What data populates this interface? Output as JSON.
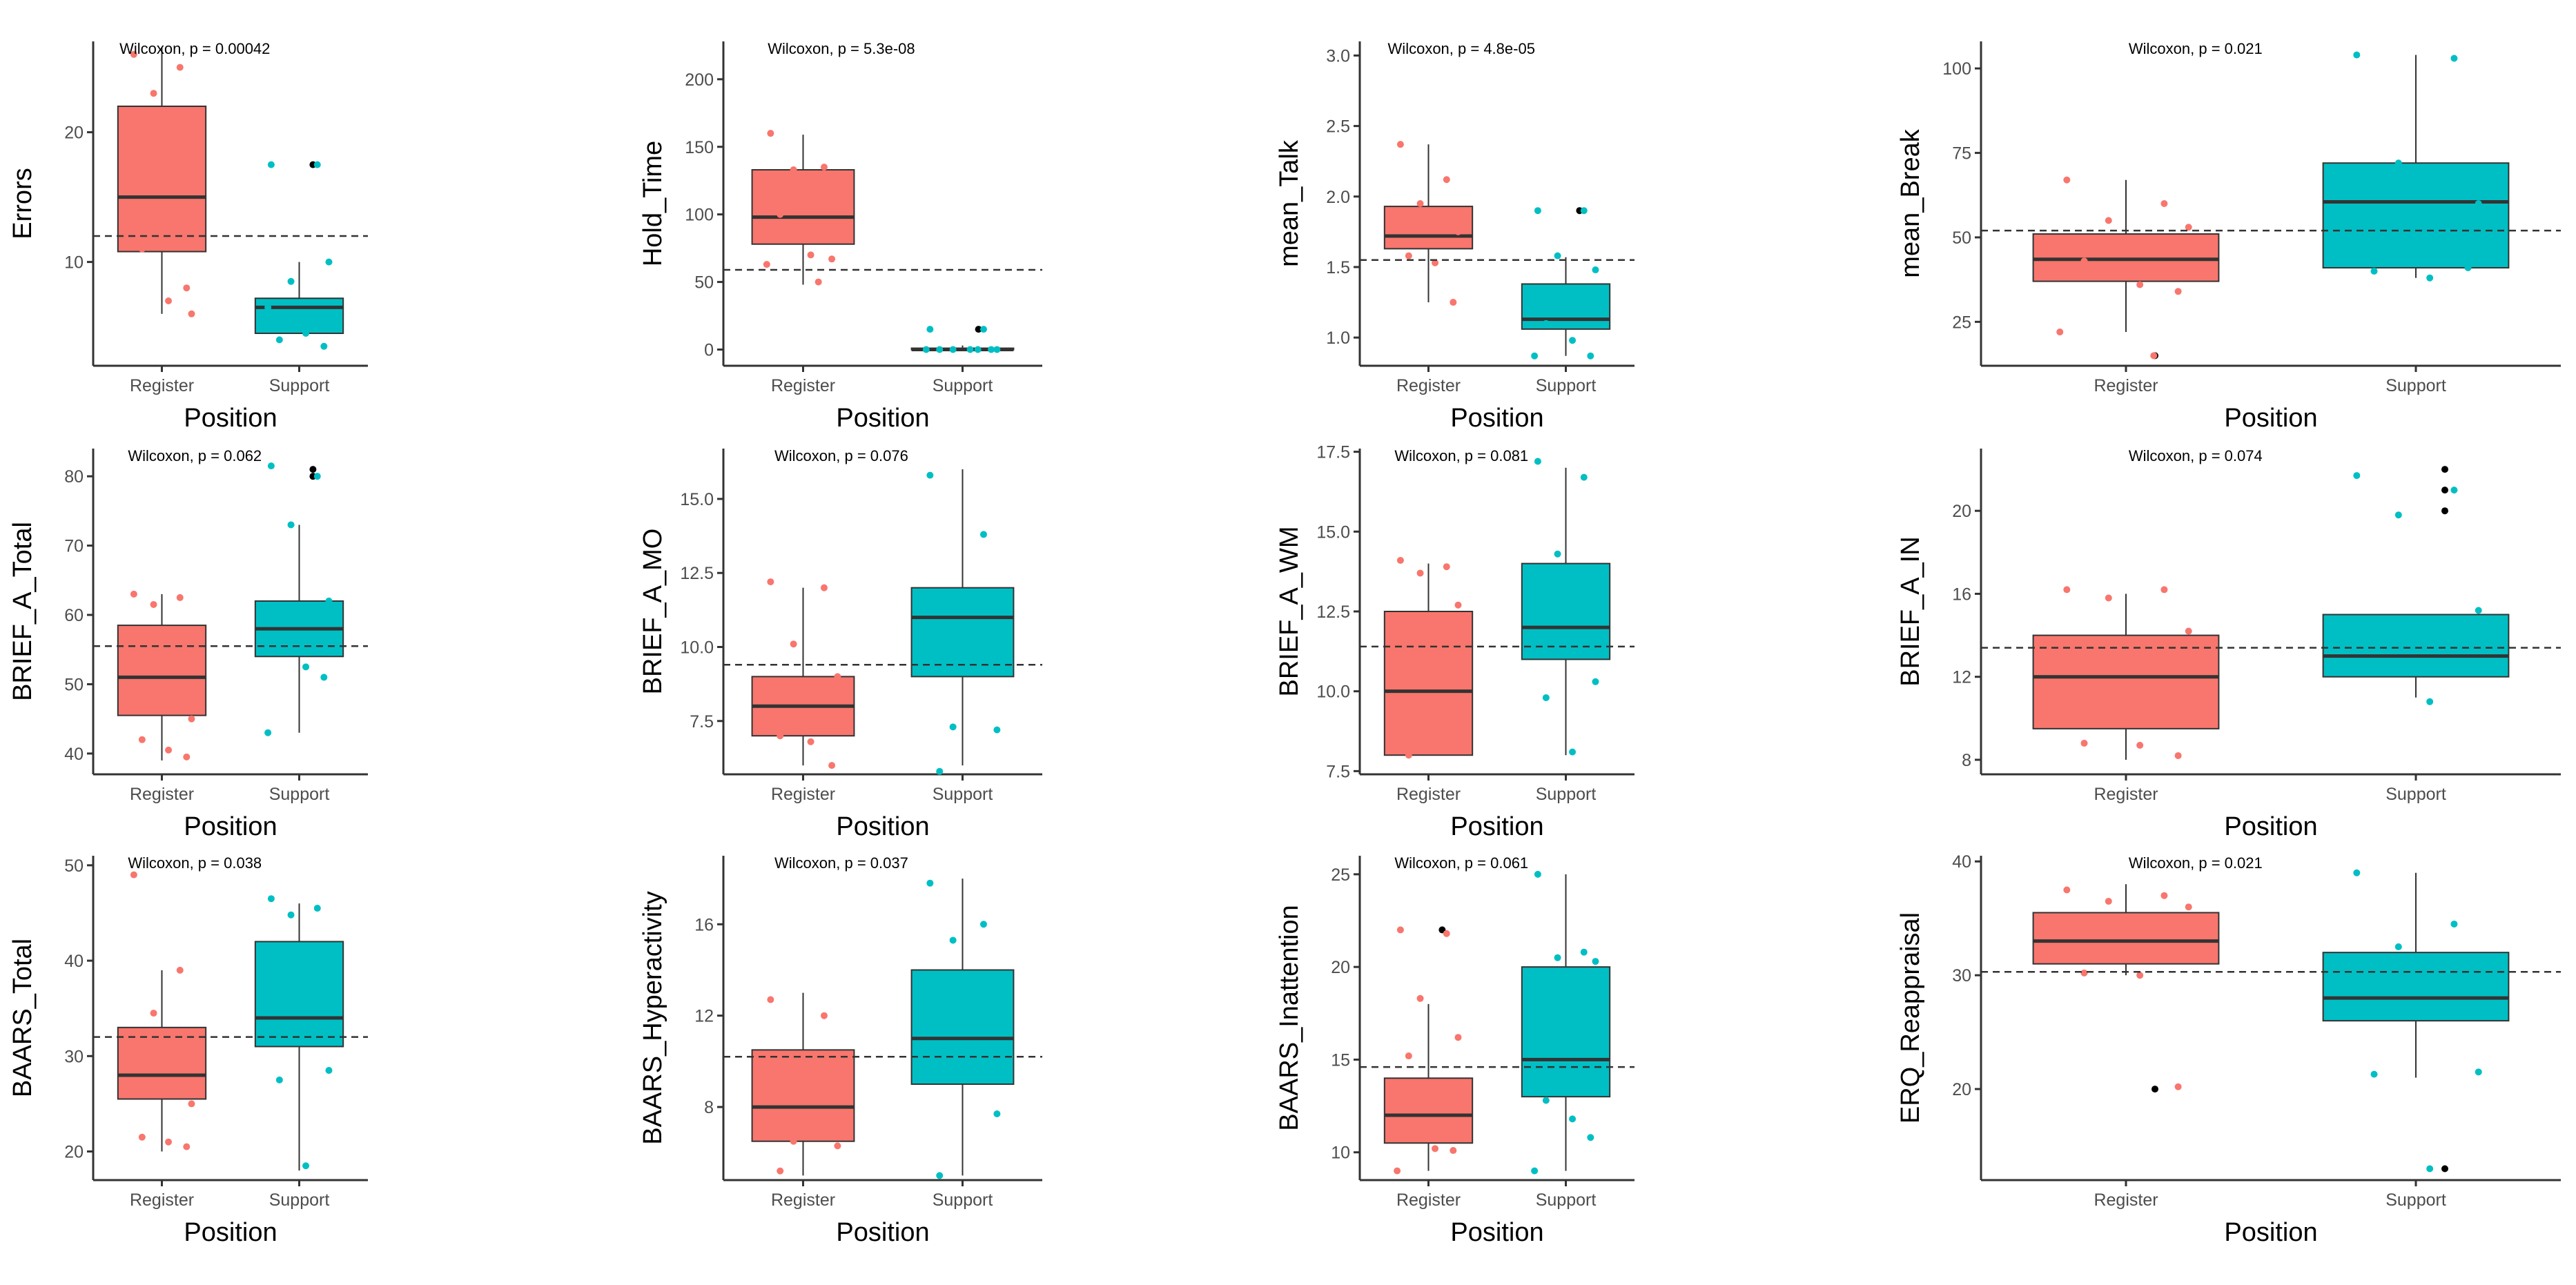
{
  "colors": {
    "register": "#f8766d",
    "support": "#00bfc4",
    "median": "#333333",
    "axis": "#333333",
    "outlier": "#000000"
  },
  "chart_data": [
    {
      "type": "boxplot",
      "panel": "errors",
      "ylabel": "Errors",
      "xlabel": "Position",
      "test": "Wilcoxon, p = 0.00042",
      "categories": [
        "Register",
        "Support"
      ],
      "ylim": [
        2,
        27
      ],
      "yticks": [
        10,
        20
      ],
      "yticklabels": [
        "10",
        "20"
      ],
      "mean_line": 12,
      "boxes": [
        {
          "group": "Register",
          "whisker_low": 6,
          "q1": 10.8,
          "median": 15,
          "q3": 22,
          "whisker_high": 26.5,
          "outliers": []
        },
        {
          "group": "Support",
          "whisker_low": 4.5,
          "q1": 4.5,
          "median": 6.5,
          "q3": 7.2,
          "whisker_high": 10,
          "outliers": [
            17.5
          ]
        }
      ],
      "points": [
        {
          "group": "Register",
          "values": [
            26,
            25,
            23,
            6,
            11,
            7,
            8
          ]
        },
        {
          "group": "Support",
          "values": [
            17.5,
            17.5,
            8.5,
            10,
            4,
            4.5,
            3.5,
            6.5
          ]
        }
      ]
    },
    {
      "type": "boxplot",
      "panel": "hold",
      "ylabel": "Hold_Time",
      "xlabel": "Position",
      "test": "Wilcoxon, p = 5.3e-08",
      "categories": [
        "Register",
        "Support"
      ],
      "ylim": [
        -12,
        228
      ],
      "yticks": [
        0,
        50,
        100,
        150,
        200
      ],
      "yticklabels": [
        "0",
        "50",
        "100",
        "150",
        "200"
      ],
      "mean_line": 59,
      "boxes": [
        {
          "group": "Register",
          "whisker_low": 48,
          "q1": 78,
          "median": 98,
          "q3": 133,
          "whisker_high": 159,
          "outliers": []
        },
        {
          "group": "Support",
          "whisker_low": 0,
          "q1": 0,
          "median": 0,
          "q3": 1,
          "whisker_high": 3,
          "outliers": [
            15
          ]
        }
      ],
      "points": [
        {
          "group": "Register",
          "values": [
            160,
            135,
            133,
            130,
            100,
            70,
            67,
            63,
            50
          ]
        },
        {
          "group": "Support",
          "values": [
            15,
            15,
            0,
            0,
            0,
            0,
            0,
            0,
            0
          ]
        }
      ]
    },
    {
      "type": "boxplot",
      "panel": "talk",
      "ylabel": "mean_Talk",
      "xlabel": "Position",
      "test": "Wilcoxon, p = 4.8e-05",
      "categories": [
        "Register",
        "Support"
      ],
      "ylim": [
        0.8,
        3.1
      ],
      "yticks": [
        1.0,
        1.5,
        2.0,
        2.5,
        3.0
      ],
      "yticklabels": [
        "1.0",
        "1.5",
        "2.0",
        "2.5",
        "3.0"
      ],
      "mean_line": 1.55,
      "boxes": [
        {
          "group": "Register",
          "whisker_low": 1.25,
          "q1": 1.63,
          "median": 1.72,
          "q3": 1.93,
          "whisker_high": 2.37,
          "outliers": []
        },
        {
          "group": "Support",
          "whisker_low": 0.87,
          "q1": 1.06,
          "median": 1.13,
          "q3": 1.38,
          "whisker_high": 1.57,
          "outliers": [
            1.9
          ]
        }
      ],
      "points": [
        {
          "group": "Register",
          "values": [
            2.37,
            2.12,
            1.95,
            1.75,
            1.58,
            1.53,
            1.25
          ]
        },
        {
          "group": "Support",
          "values": [
            1.9,
            1.9,
            1.58,
            1.48,
            1.1,
            0.98,
            0.87,
            0.87
          ]
        }
      ]
    },
    {
      "type": "boxplot",
      "panel": "break",
      "ylabel": "mean_Break",
      "xlabel": "Position",
      "test": "Wilcoxon, p = 0.021",
      "categories": [
        "Register",
        "Support"
      ],
      "ylim": [
        12,
        108
      ],
      "yticks": [
        25,
        50,
        75,
        100
      ],
      "yticklabels": [
        "25",
        "50",
        "75",
        "100"
      ],
      "mean_line": 52,
      "boxes": [
        {
          "group": "Register",
          "whisker_low": 22,
          "q1": 37,
          "median": 43.5,
          "q3": 51,
          "whisker_high": 67,
          "outliers": [
            15
          ]
        },
        {
          "group": "Support",
          "whisker_low": 38,
          "q1": 41,
          "median": 60.5,
          "q3": 72,
          "whisker_high": 104,
          "outliers": []
        }
      ],
      "points": [
        {
          "group": "Register",
          "values": [
            67,
            60,
            55,
            53,
            43,
            36,
            34,
            22,
            15
          ]
        },
        {
          "group": "Support",
          "values": [
            104,
            103,
            72,
            60,
            40,
            38,
            41
          ]
        }
      ]
    },
    {
      "type": "boxplot",
      "panel": "brief_total",
      "ylabel": "BRIEF_A_Total",
      "xlabel": "Position",
      "test": "Wilcoxon, p = 0.062",
      "categories": [
        "Register",
        "Support"
      ],
      "ylim": [
        37,
        84
      ],
      "yticks": [
        40,
        50,
        60,
        70,
        80
      ],
      "yticklabels": [
        "40",
        "50",
        "60",
        "70",
        "80"
      ],
      "mean_line": 55.5,
      "boxes": [
        {
          "group": "Register",
          "whisker_low": 39,
          "q1": 45.5,
          "median": 51,
          "q3": 58.5,
          "whisker_high": 63,
          "outliers": []
        },
        {
          "group": "Support",
          "whisker_low": 43,
          "q1": 54,
          "median": 58,
          "q3": 62,
          "whisker_high": 73,
          "outliers": [
            80,
            81
          ]
        }
      ],
      "points": [
        {
          "group": "Register",
          "values": [
            63,
            62.5,
            61.5,
            45,
            42,
            40.5,
            39.5
          ]
        },
        {
          "group": "Support",
          "values": [
            81.5,
            80,
            73,
            62,
            57,
            52.5,
            51,
            43
          ]
        }
      ]
    },
    {
      "type": "boxplot",
      "panel": "brief_mo",
      "ylabel": "BRIEF_A_MO",
      "xlabel": "Position",
      "test": "Wilcoxon, p = 0.076",
      "categories": [
        "Register",
        "Support"
      ],
      "ylim": [
        5.7,
        16.7
      ],
      "yticks": [
        7.5,
        10,
        12.5,
        15
      ],
      "yticklabels": [
        "7.5",
        "10.0",
        "12.5",
        "15.0"
      ],
      "mean_line": 9.4,
      "boxes": [
        {
          "group": "Register",
          "whisker_low": 6,
          "q1": 7,
          "median": 8,
          "q3": 9,
          "whisker_high": 12,
          "outliers": []
        },
        {
          "group": "Support",
          "whisker_low": 6,
          "q1": 9,
          "median": 11,
          "q3": 12,
          "whisker_high": 16,
          "outliers": []
        }
      ],
      "points": [
        {
          "group": "Register",
          "values": [
            12.2,
            12,
            10.1,
            9,
            7,
            6.8,
            6
          ]
        },
        {
          "group": "Support",
          "values": [
            15.8,
            13.8,
            7.3,
            7.2,
            5.8
          ]
        }
      ]
    },
    {
      "type": "boxplot",
      "panel": "brief_wm",
      "ylabel": "BRIEF_A_WM",
      "xlabel": "Position",
      "test": "Wilcoxon, p = 0.081",
      "categories": [
        "Register",
        "Support"
      ],
      "ylim": [
        7.4,
        17.6
      ],
      "yticks": [
        7.5,
        10,
        12.5,
        15,
        17.5
      ],
      "yticklabels": [
        "7.5",
        "10.0",
        "12.5",
        "15.0",
        "17.5"
      ],
      "mean_line": 11.4,
      "boxes": [
        {
          "group": "Register",
          "whisker_low": 8,
          "q1": 8,
          "median": 10,
          "q3": 12.5,
          "whisker_high": 14,
          "outliers": []
        },
        {
          "group": "Support",
          "whisker_low": 8,
          "q1": 11,
          "median": 12,
          "q3": 14,
          "whisker_high": 17,
          "outliers": []
        }
      ],
      "points": [
        {
          "group": "Register",
          "values": [
            14.1,
            13.9,
            13.7,
            12.7,
            8
          ]
        },
        {
          "group": "Support",
          "values": [
            17.2,
            16.7,
            14.3,
            10.3,
            9.8,
            8.1
          ]
        }
      ]
    },
    {
      "type": "boxplot",
      "panel": "brief_in",
      "ylabel": "BRIEF_A_IN",
      "xlabel": "Position",
      "test": "Wilcoxon, p = 0.074",
      "categories": [
        "Register",
        "Support"
      ],
      "ylim": [
        7.3,
        23
      ],
      "yticks": [
        8,
        12,
        16,
        20
      ],
      "yticklabels": [
        "8",
        "12",
        "16",
        "20"
      ],
      "mean_line": 13.4,
      "boxes": [
        {
          "group": "Register",
          "whisker_low": 8,
          "q1": 9.5,
          "median": 12,
          "q3": 14,
          "whisker_high": 16,
          "outliers": []
        },
        {
          "group": "Support",
          "whisker_low": 11,
          "q1": 12,
          "median": 13,
          "q3": 15,
          "whisker_high": 15,
          "outliers": [
            20,
            21,
            22
          ]
        }
      ],
      "points": [
        {
          "group": "Register",
          "values": [
            16.2,
            16.2,
            15.8,
            14.2,
            8.8,
            8.7,
            8.2
          ]
        },
        {
          "group": "Support",
          "values": [
            21.7,
            21,
            19.8,
            15.2,
            12.5,
            10.8
          ]
        }
      ]
    },
    {
      "type": "boxplot",
      "panel": "baars_total",
      "ylabel": "BAARS_Total",
      "xlabel": "Position",
      "test": "Wilcoxon, p = 0.038",
      "categories": [
        "Register",
        "Support"
      ],
      "ylim": [
        17,
        51
      ],
      "yticks": [
        20,
        30,
        40,
        50
      ],
      "yticklabels": [
        "20",
        "30",
        "40",
        "50"
      ],
      "mean_line": 32,
      "boxes": [
        {
          "group": "Register",
          "whisker_low": 20,
          "q1": 25.5,
          "median": 28,
          "q3": 33,
          "whisker_high": 39,
          "outliers": []
        },
        {
          "group": "Support",
          "whisker_low": 18,
          "q1": 31,
          "median": 34,
          "q3": 42,
          "whisker_high": 46,
          "outliers": []
        }
      ],
      "points": [
        {
          "group": "Register",
          "values": [
            49,
            39,
            34.5,
            25,
            21.5,
            21,
            20.5
          ]
        },
        {
          "group": "Support",
          "values": [
            46.5,
            45.5,
            44.8,
            28.5,
            27.5,
            18.5
          ]
        }
      ]
    },
    {
      "type": "boxplot",
      "panel": "baars_hyper",
      "ylabel": "BAARS_Hyperactivity",
      "xlabel": "Position",
      "test": "Wilcoxon, p = 0.037",
      "categories": [
        "Register",
        "Support"
      ],
      "ylim": [
        4.8,
        19
      ],
      "yticks": [
        8,
        12,
        16
      ],
      "yticklabels": [
        "8",
        "12",
        "16"
      ],
      "mean_line": 10.2,
      "boxes": [
        {
          "group": "Register",
          "whisker_low": 5,
          "q1": 6.5,
          "median": 8,
          "q3": 10.5,
          "whisker_high": 13,
          "outliers": []
        },
        {
          "group": "Support",
          "whisker_low": 5,
          "q1": 9,
          "median": 11,
          "q3": 14,
          "whisker_high": 18,
          "outliers": []
        }
      ],
      "points": [
        {
          "group": "Register",
          "values": [
            12.7,
            12,
            6.5,
            6.3,
            5.2
          ]
        },
        {
          "group": "Support",
          "values": [
            17.8,
            16,
            15.3,
            7.7,
            5
          ]
        }
      ]
    },
    {
      "type": "boxplot",
      "panel": "baars_inatt",
      "ylabel": "BAARS_Inattention",
      "xlabel": "Position",
      "test": "Wilcoxon, p = 0.061",
      "categories": [
        "Register",
        "Support"
      ],
      "ylim": [
        8.5,
        26
      ],
      "yticks": [
        10,
        15,
        20,
        25
      ],
      "yticklabels": [
        "10",
        "15",
        "20",
        "25"
      ],
      "mean_line": 14.6,
      "boxes": [
        {
          "group": "Register",
          "whisker_low": 9,
          "q1": 10.5,
          "median": 12,
          "q3": 14,
          "whisker_high": 18,
          "outliers": [
            22
          ]
        },
        {
          "group": "Support",
          "whisker_low": 9,
          "q1": 13,
          "median": 15,
          "q3": 20,
          "whisker_high": 25,
          "outliers": []
        }
      ],
      "points": [
        {
          "group": "Register",
          "values": [
            22,
            21.8,
            18.3,
            16.2,
            15.2,
            10.2,
            10.1,
            9
          ]
        },
        {
          "group": "Support",
          "values": [
            25,
            20.8,
            20.5,
            20.3,
            12.8,
            11.8,
            10.8,
            9
          ]
        }
      ]
    },
    {
      "type": "boxplot",
      "panel": "erq",
      "ylabel": "ERQ_Reappraisal",
      "xlabel": "Position",
      "test": "Wilcoxon, p = 0.021",
      "categories": [
        "Register",
        "Support"
      ],
      "ylim": [
        12,
        40.5
      ],
      "yticks": [
        20,
        30,
        40
      ],
      "yticklabels": [
        "20",
        "30",
        "40"
      ],
      "mean_line": 30.3,
      "boxes": [
        {
          "group": "Register",
          "whisker_low": 30,
          "q1": 31,
          "median": 33,
          "q3": 35.5,
          "whisker_high": 38,
          "outliers": [
            20
          ]
        },
        {
          "group": "Support",
          "whisker_low": 21,
          "q1": 26,
          "median": 28,
          "q3": 32,
          "whisker_high": 39,
          "outliers": [
            13
          ]
        }
      ],
      "points": [
        {
          "group": "Register",
          "values": [
            37.5,
            37,
            36.5,
            36,
            30.2,
            30,
            20.2
          ]
        },
        {
          "group": "Support",
          "values": [
            39,
            34.5,
            32.5,
            21.5,
            21.3,
            13
          ]
        }
      ]
    }
  ]
}
